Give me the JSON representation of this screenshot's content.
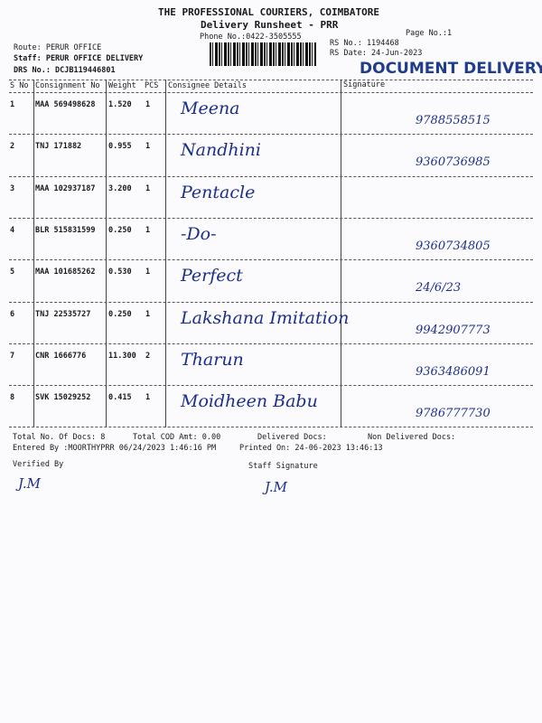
{
  "header": {
    "company": "THE PROFESSIONAL COURIERS, COIMBATORE",
    "title": "Delivery Runsheet - PRR",
    "phone": "Phone No.:0422-3505555",
    "page_no": "Page No.:1",
    "route": "Route: PERUR OFFICE",
    "staff": "Staff: PERUR OFFICE DELIVERY",
    "drs_no": "DRS No.: DCJB119446801",
    "rs_no": "RS No.: 1194468",
    "rs_date": "RS Date: 24-Jun-2023",
    "stamp": "DOCUMENT DELIVERY"
  },
  "table": {
    "columns": [
      "S No",
      "Consignment No",
      "Weight",
      "PCS",
      "Consignee Details",
      "Signature"
    ],
    "rows": [
      {
        "sno": "1",
        "consignment": "MAA 569498628",
        "weight": "1.520",
        "pcs": "1",
        "consignee": "Meena",
        "signature": "9788558515"
      },
      {
        "sno": "2",
        "consignment": "TNJ 171882",
        "weight": "0.955",
        "pcs": "1",
        "consignee": "Nandhini",
        "signature": "9360736985"
      },
      {
        "sno": "3",
        "consignment": "MAA 102937187",
        "weight": "3.200",
        "pcs": "1",
        "consignee": "Pentacle",
        "signature": ""
      },
      {
        "sno": "4",
        "consignment": "BLR 515831599",
        "weight": "0.250",
        "pcs": "1",
        "consignee": "-Do-",
        "signature": "9360734805"
      },
      {
        "sno": "5",
        "consignment": "MAA 101685262",
        "weight": "0.530",
        "pcs": "1",
        "consignee": "Perfect",
        "signature": "24/6/23"
      },
      {
        "sno": "6",
        "consignment": "TNJ 22535727",
        "weight": "0.250",
        "pcs": "1",
        "consignee": "Lakshana Imitation",
        "signature": "9942907773"
      },
      {
        "sno": "7",
        "consignment": "CNR 1666776",
        "weight": "11.300",
        "pcs": "2",
        "consignee": "Tharun",
        "signature": "9363486091"
      },
      {
        "sno": "8",
        "consignment": "SVK 15029252",
        "weight": "0.415",
        "pcs": "1",
        "consignee": "Moidheen Babu",
        "signature": "9786777730"
      }
    ]
  },
  "footer": {
    "total_docs": "Total No. Of Docs:   8",
    "total_cod": "Total COD Amt:    0.00",
    "delivered": "Delivered Docs:",
    "non_delivered": "Non Delivered Docs:",
    "entered_by": "Entered By :MOORTHYPRR 06/24/2023 1:46:16 PM",
    "printed_on": "Printed On: 24-06-2023 13:46:13",
    "verified_by": "Verified By",
    "staff_signature": "Staff Signature",
    "verified_sign": "J.M",
    "staff_sign": "J.M"
  }
}
